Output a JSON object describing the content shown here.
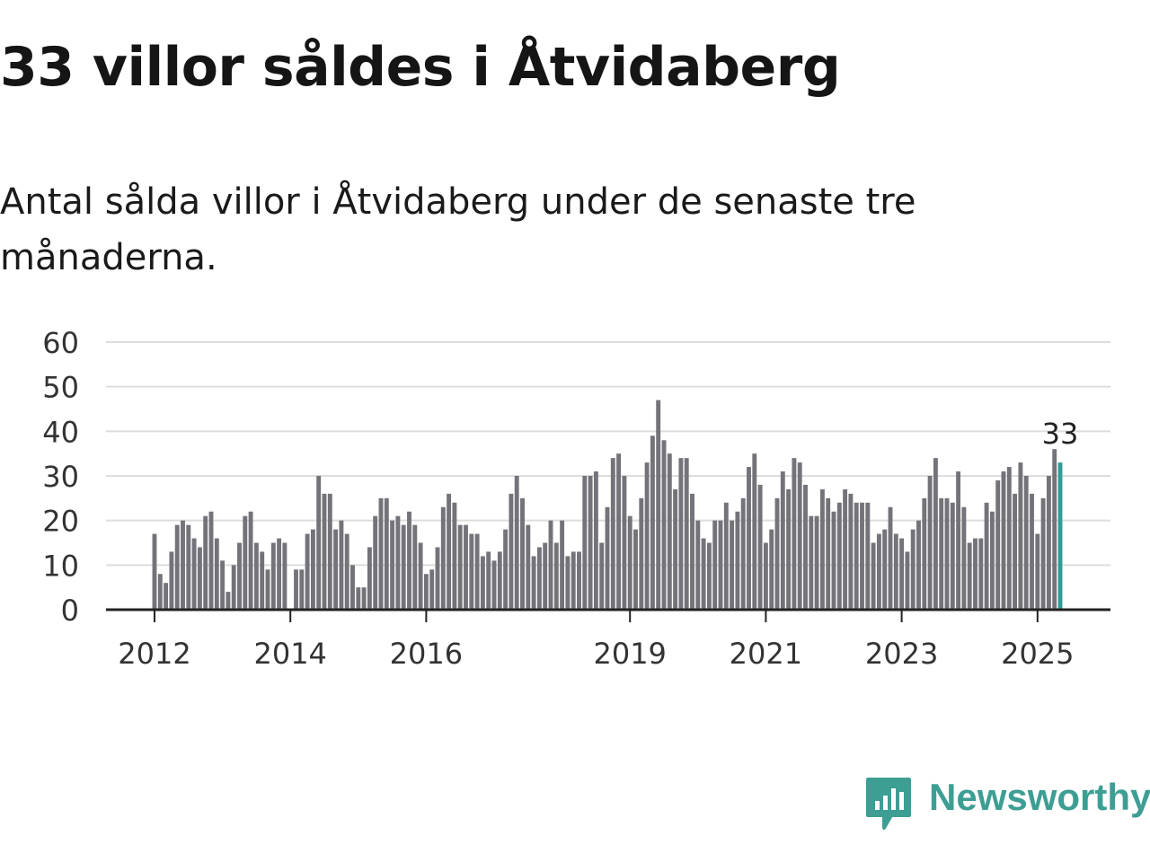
{
  "title": "33 villor såldes i Åtvidaberg",
  "subtitle": "Antal sålda villor i Åtvidaberg under de senaste tre månaderna.",
  "brand": {
    "name": "Newsworthy",
    "icon": "newsworthy-logo-icon"
  },
  "colors": {
    "bar": "#74737a",
    "highlight": "#2f9e96",
    "grid": "#dddddd",
    "axis": "#222222",
    "brand": "#3d9e94"
  },
  "chart_data": {
    "type": "bar",
    "x_start": "2012-01",
    "x_tick_labels": [
      "2012",
      "2014",
      "2016",
      "2019",
      "2021",
      "2023",
      "2025"
    ],
    "y_tick_labels": [
      "0",
      "10",
      "20",
      "30",
      "40",
      "50",
      "60"
    ],
    "ylim": [
      0,
      60
    ],
    "grid": true,
    "values": [
      17,
      8,
      6,
      13,
      19,
      20,
      19,
      16,
      14,
      21,
      22,
      16,
      11,
      4,
      10,
      15,
      21,
      22,
      15,
      13,
      9,
      15,
      16,
      15,
      0,
      9,
      9,
      17,
      18,
      30,
      26,
      26,
      18,
      20,
      17,
      10,
      5,
      5,
      14,
      21,
      25,
      25,
      20,
      21,
      19,
      22,
      19,
      15,
      8,
      9,
      14,
      23,
      26,
      24,
      19,
      19,
      17,
      17,
      12,
      13,
      11,
      13,
      18,
      26,
      30,
      25,
      19,
      12,
      14,
      15,
      20,
      15,
      20,
      12,
      13,
      13,
      30,
      30,
      31,
      15,
      23,
      34,
      35,
      30,
      21,
      18,
      25,
      33,
      39,
      47,
      38,
      35,
      27,
      34,
      34,
      26,
      20,
      16,
      15,
      20,
      20,
      24,
      20,
      22,
      25,
      32,
      35,
      28,
      15,
      18,
      25,
      31,
      27,
      34,
      33,
      28,
      21,
      21,
      27,
      25,
      22,
      24,
      27,
      26,
      24,
      24,
      24,
      15,
      17,
      18,
      23,
      17,
      16,
      13,
      18,
      20,
      25,
      30,
      34,
      25,
      25,
      24,
      31,
      23,
      15,
      16,
      16,
      24,
      22,
      29,
      31,
      32,
      26,
      33,
      30,
      26,
      17,
      25,
      30,
      36,
      33
    ],
    "highlight_label": "33"
  }
}
